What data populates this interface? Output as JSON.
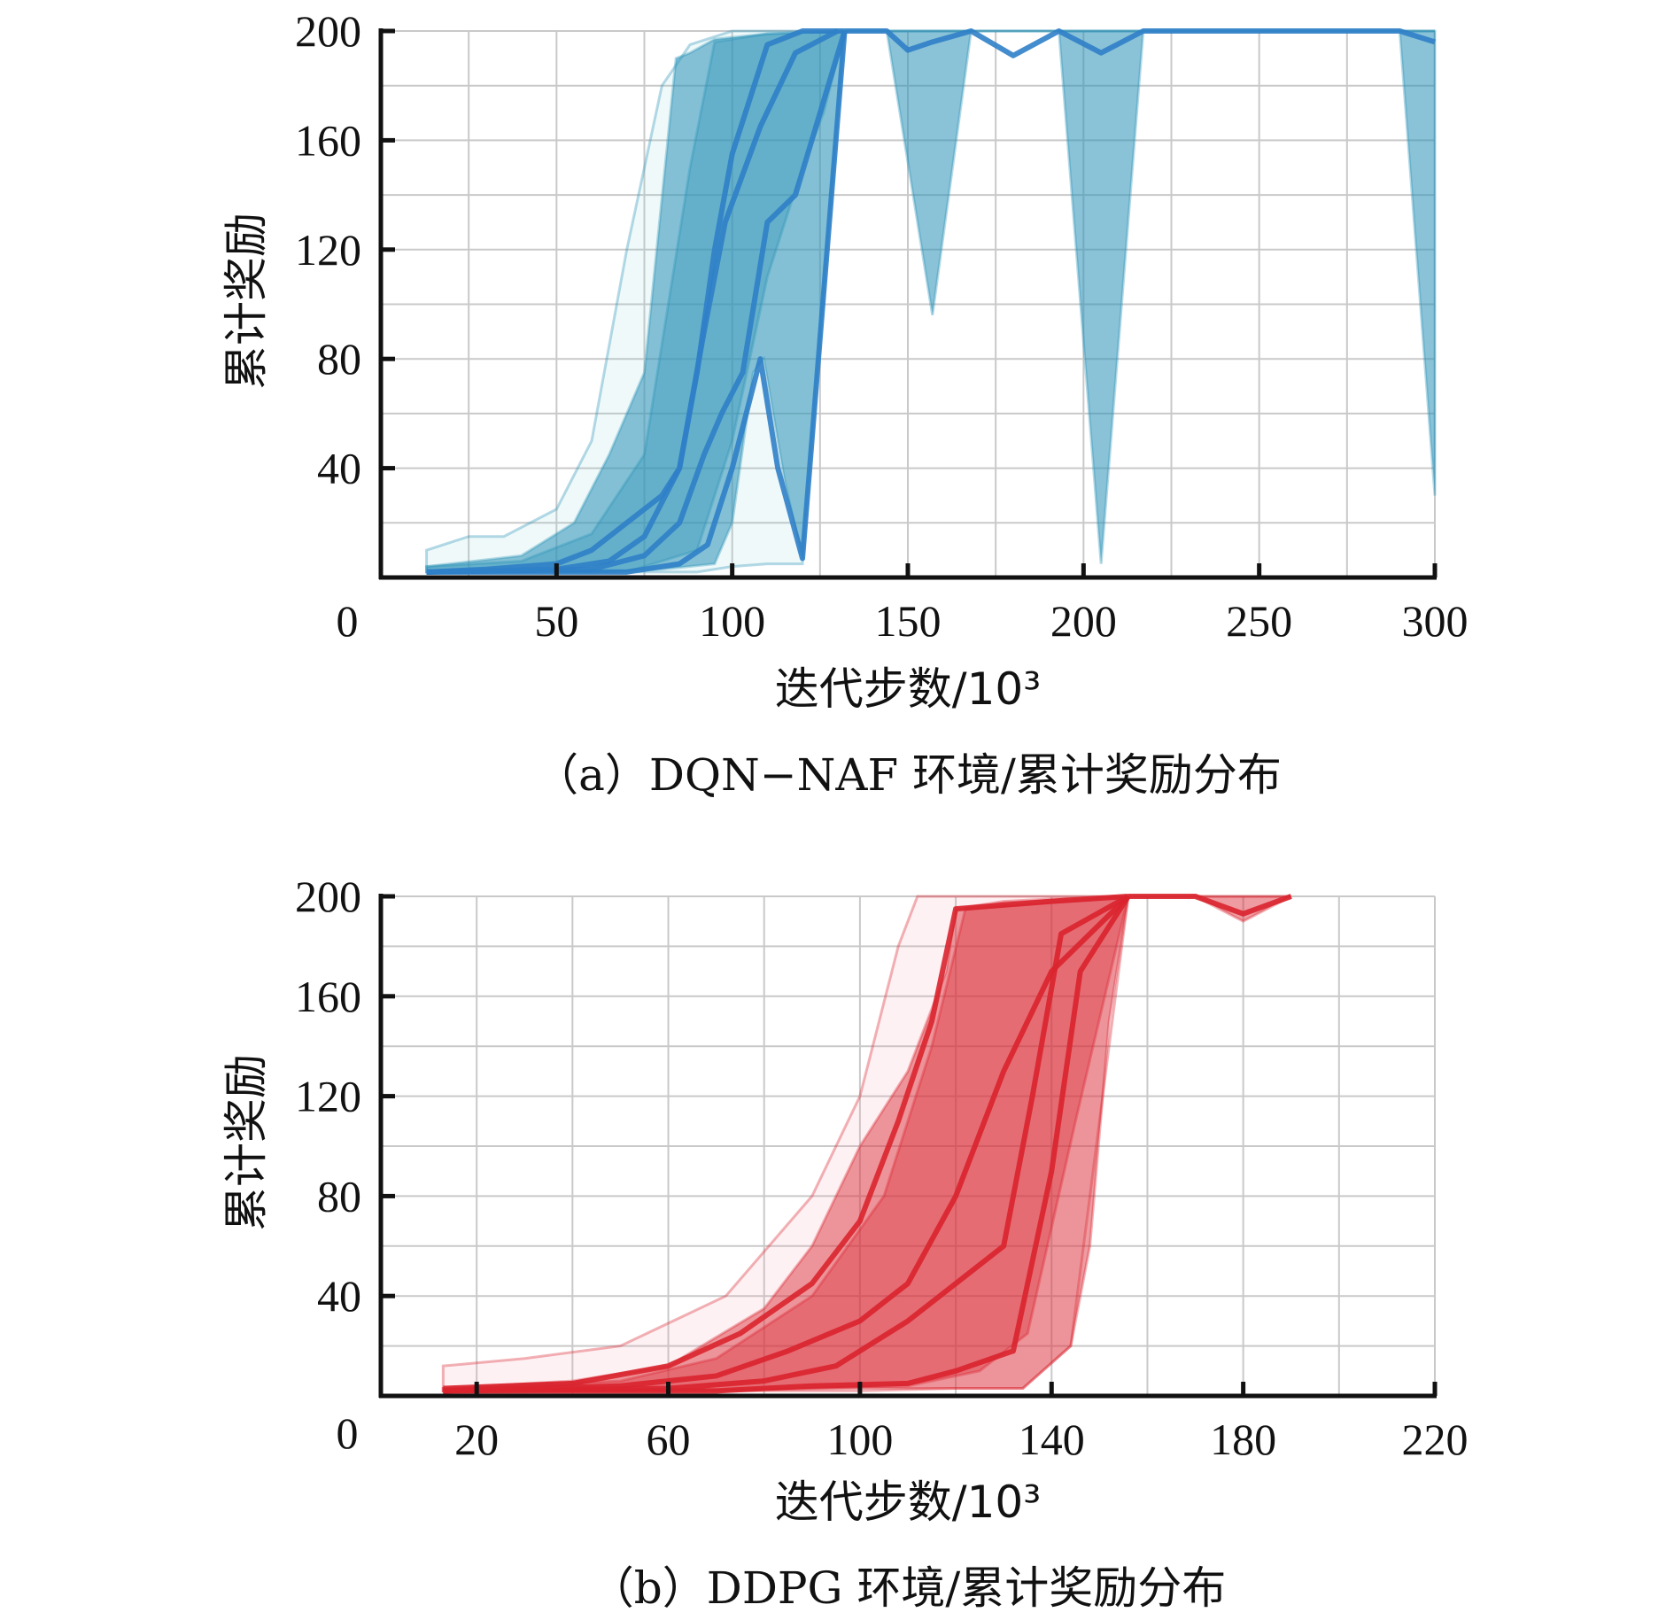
{
  "chart_data": [
    {
      "type": "area",
      "caption": "（a）DQN−NAF 环境/累计奖励分布",
      "xlabel": "迭代步数/10³",
      "ylabel": "累计奖励",
      "x_origin_label": "0",
      "xlim": [
        0,
        300
      ],
      "ylim": [
        0,
        200
      ],
      "xticks": [
        50,
        100,
        150,
        200,
        250,
        300
      ],
      "yticks": [
        40,
        80,
        120,
        160,
        200
      ],
      "grid": true,
      "colors": {
        "fill": "#2a91b8",
        "line": "#2f80c8",
        "light": "#8fd8d6"
      },
      "bands": [
        {
          "alpha": 0.14,
          "upper": [
            [
              13,
              10
            ],
            [
              25,
              15
            ],
            [
              35,
              15
            ],
            [
              50,
              25
            ],
            [
              60,
              50
            ],
            [
              70,
              120
            ],
            [
              80,
              180
            ],
            [
              88,
              195
            ],
            [
              100,
              200
            ],
            [
              300,
              200
            ]
          ],
          "lower": [
            [
              13,
              2
            ],
            [
              40,
              2
            ],
            [
              70,
              2
            ],
            [
              90,
              2
            ],
            [
              100,
              4
            ],
            [
              110,
              5
            ],
            [
              120,
              5
            ],
            [
              132,
              200
            ],
            [
              300,
              200
            ]
          ]
        },
        {
          "alpha": 0.55,
          "upper": [
            [
              13,
              4
            ],
            [
              40,
              8
            ],
            [
              55,
              20
            ],
            [
              65,
              45
            ],
            [
              75,
              75
            ],
            [
              84,
              190
            ],
            [
              88,
              192
            ],
            [
              95,
              197
            ],
            [
              110,
              199
            ],
            [
              132,
              200
            ],
            [
              300,
              200
            ]
          ],
          "lower": [
            [
              13,
              2
            ],
            [
              60,
              2
            ],
            [
              80,
              3
            ],
            [
              95,
              5
            ],
            [
              100,
              20
            ],
            [
              106,
              75
            ],
            [
              109,
              80
            ],
            [
              115,
              35
            ],
            [
              120,
              7
            ],
            [
              132,
              200
            ],
            [
              144,
              200
            ],
            [
              157,
              96
            ],
            [
              168,
              200
            ],
            [
              193,
              200
            ],
            [
              205,
              5
            ],
            [
              217,
              200
            ],
            [
              290,
              200
            ],
            [
              300,
              30
            ]
          ]
        },
        {
          "alpha": 0.35,
          "upper": [
            [
              13,
              4
            ],
            [
              40,
              6
            ],
            [
              60,
              16
            ],
            [
              75,
              45
            ],
            [
              88,
              150
            ],
            [
              95,
              196
            ],
            [
              110,
              199
            ],
            [
              132,
              200
            ],
            [
              300,
              200
            ]
          ],
          "lower": [
            [
              13,
              2
            ],
            [
              70,
              2
            ],
            [
              90,
              10
            ],
            [
              100,
              50
            ],
            [
              110,
              110
            ],
            [
              120,
              150
            ],
            [
              126,
              170
            ],
            [
              132,
              200
            ],
            [
              300,
              200
            ]
          ]
        }
      ],
      "series": [
        {
          "values": [
            [
              13,
              2
            ],
            [
              30,
              3
            ],
            [
              50,
              5
            ],
            [
              60,
              10
            ],
            [
              70,
              20
            ],
            [
              80,
              30
            ],
            [
              85,
              40
            ],
            [
              90,
              75
            ],
            [
              95,
              120
            ],
            [
              100,
              155
            ],
            [
              110,
              195
            ],
            [
              120,
              200
            ],
            [
              132,
              200
            ]
          ]
        },
        {
          "values": [
            [
              13,
              2
            ],
            [
              50,
              3
            ],
            [
              65,
              6
            ],
            [
              75,
              15
            ],
            [
              85,
              40
            ],
            [
              92,
              90
            ],
            [
              98,
              130
            ],
            [
              108,
              165
            ],
            [
              118,
              192
            ],
            [
              130,
              200
            ]
          ]
        },
        {
          "values": [
            [
              13,
              2
            ],
            [
              60,
              3
            ],
            [
              75,
              8
            ],
            [
              85,
              20
            ],
            [
              92,
              45
            ],
            [
              97,
              60
            ],
            [
              103,
              75
            ],
            [
              110,
              130
            ],
            [
              118,
              140
            ],
            [
              132,
              200
            ]
          ]
        },
        {
          "values": [
            [
              13,
              2
            ],
            [
              70,
              2
            ],
            [
              85,
              5
            ],
            [
              93,
              12
            ],
            [
              100,
              40
            ],
            [
              108,
              80
            ],
            [
              113,
              40
            ],
            [
              120,
              7
            ],
            [
              132,
              200
            ]
          ]
        },
        {
          "values": [
            [
              132,
              200
            ],
            [
              144,
              200
            ],
            [
              150,
              193
            ],
            [
              157,
              196
            ],
            [
              168,
              200
            ],
            [
              180,
              191
            ],
            [
              193,
              200
            ],
            [
              205,
              192
            ],
            [
              217,
              200
            ],
            [
              290,
              200
            ],
            [
              300,
              196
            ]
          ]
        }
      ]
    },
    {
      "type": "area",
      "caption": "（b）DDPG 环境/累计奖励分布",
      "xlabel": "迭代步数/10³",
      "ylabel": "累计奖励",
      "x_origin_label": "0",
      "xlim": [
        0,
        220
      ],
      "ylim": [
        0,
        200
      ],
      "xticks": [
        20,
        60,
        100,
        140,
        180,
        220
      ],
      "yticks": [
        40,
        80,
        120,
        160,
        200
      ],
      "grid": true,
      "colors": {
        "fill": "#d9232e",
        "line": "#d9232e",
        "light": "#f2a6b3"
      },
      "bands": [
        {
          "alpha": 0.16,
          "upper": [
            [
              13,
              12
            ],
            [
              30,
              15
            ],
            [
              50,
              20
            ],
            [
              72,
              40
            ],
            [
              90,
              80
            ],
            [
              100,
              120
            ],
            [
              108,
              180
            ],
            [
              112,
              200
            ],
            [
              156,
              200
            ],
            [
              190,
              200
            ]
          ],
          "lower": [
            [
              13,
              2
            ],
            [
              60,
              2
            ],
            [
              100,
              2
            ],
            [
              120,
              3
            ],
            [
              134,
              3
            ],
            [
              144,
              20
            ],
            [
              156,
              200
            ],
            [
              190,
              200
            ]
          ]
        },
        {
          "alpha": 0.45,
          "upper": [
            [
              13,
              3
            ],
            [
              40,
              6
            ],
            [
              60,
              12
            ],
            [
              80,
              35
            ],
            [
              90,
              60
            ],
            [
              100,
              100
            ],
            [
              110,
              130
            ],
            [
              118,
              170
            ],
            [
              120,
              195
            ],
            [
              130,
              198
            ],
            [
              140,
              199
            ],
            [
              156,
              200
            ],
            [
              170,
              200
            ],
            [
              190,
              200
            ]
          ],
          "lower": [
            [
              13,
              2
            ],
            [
              60,
              2
            ],
            [
              100,
              3
            ],
            [
              120,
              3
            ],
            [
              134,
              3
            ],
            [
              144,
              20
            ],
            [
              148,
              60
            ],
            [
              152,
              150
            ],
            [
              156,
              200
            ],
            [
              170,
              200
            ],
            [
              180,
              190
            ],
            [
              190,
              200
            ]
          ]
        },
        {
          "alpha": 0.35,
          "upper": [
            [
              13,
              3
            ],
            [
              50,
              6
            ],
            [
              70,
              15
            ],
            [
              90,
              40
            ],
            [
              105,
              80
            ],
            [
              115,
              140
            ],
            [
              122,
              195
            ],
            [
              156,
              200
            ]
          ],
          "lower": [
            [
              13,
              2
            ],
            [
              70,
              2
            ],
            [
              110,
              4
            ],
            [
              125,
              10
            ],
            [
              135,
              25
            ],
            [
              145,
              110
            ],
            [
              156,
              200
            ]
          ]
        }
      ],
      "series": [
        {
          "values": [
            [
              13,
              3
            ],
            [
              40,
              5
            ],
            [
              60,
              12
            ],
            [
              75,
              25
            ],
            [
              90,
              45
            ],
            [
              100,
              70
            ],
            [
              108,
              110
            ],
            [
              115,
              150
            ],
            [
              120,
              195
            ],
            [
              140,
              198
            ],
            [
              156,
              200
            ]
          ]
        },
        {
          "values": [
            [
              13,
              2
            ],
            [
              50,
              4
            ],
            [
              70,
              8
            ],
            [
              85,
              18
            ],
            [
              100,
              30
            ],
            [
              110,
              45
            ],
            [
              120,
              80
            ],
            [
              130,
              130
            ],
            [
              140,
              170
            ],
            [
              156,
              200
            ]
          ]
        },
        {
          "values": [
            [
              13,
              2
            ],
            [
              60,
              3
            ],
            [
              80,
              6
            ],
            [
              95,
              12
            ],
            [
              110,
              30
            ],
            [
              120,
              45
            ],
            [
              130,
              60
            ],
            [
              136,
              120
            ],
            [
              142,
              185
            ],
            [
              156,
              200
            ]
          ]
        },
        {
          "values": [
            [
              13,
              2
            ],
            [
              70,
              2
            ],
            [
              90,
              4
            ],
            [
              110,
              5
            ],
            [
              120,
              10
            ],
            [
              132,
              18
            ],
            [
              140,
              90
            ],
            [
              146,
              170
            ],
            [
              156,
              200
            ]
          ]
        },
        {
          "values": [
            [
              156,
              200
            ],
            [
              170,
              200
            ],
            [
              180,
              193
            ],
            [
              190,
              200
            ]
          ]
        }
      ]
    }
  ]
}
